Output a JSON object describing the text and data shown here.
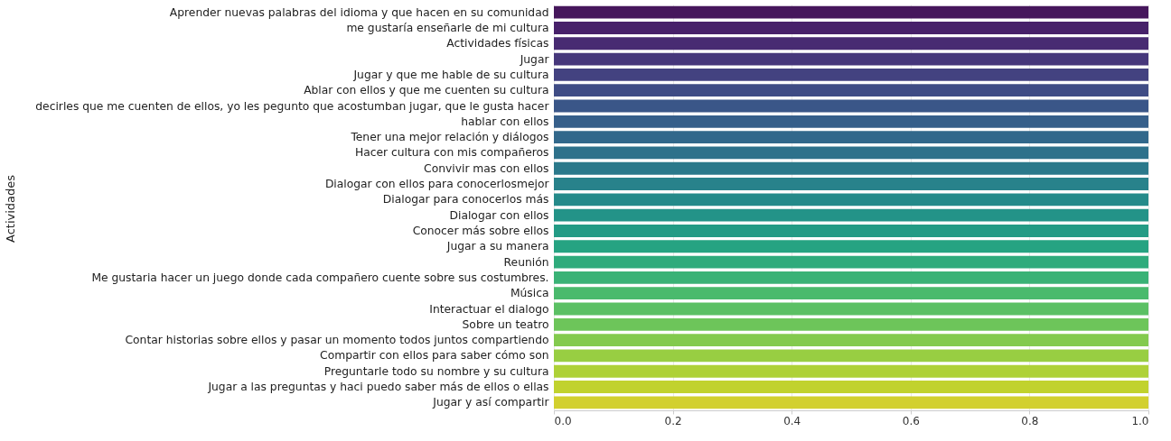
{
  "chart_data": {
    "type": "bar",
    "orientation": "horizontal",
    "ylabel": "Actividades",
    "categories": [
      "Aprender nuevas palabras del idioma y que hacen en su comunidad",
      "me gustaría enseñarle de mi cultura",
      "Actividades físicas",
      "Jugar",
      "Jugar y que me hable de su cultura",
      "Ablar con ellos y que me cuenten su cultura",
      "decirles que me  cuenten de ellos, yo les pegunto que acostumban jugar, que le gusta hacer",
      "hablar con ellos",
      "Tener una mejor relación y diálogos",
      "Hacer cultura con mis compañeros",
      "Convivir mas con ellos",
      "Dialogar con ellos para conocerlosmejor",
      "Dialogar para conocerlos más",
      "Dialogar con ellos",
      "Conocer más sobre ellos",
      "Jugar a su manera",
      "Reunión",
      "Me gustaria hacer un juego donde cada compañero cuente sobre sus costumbres.",
      "Música",
      "Interactuar el dialogo",
      "Sobre un teatro",
      "Contar historias sobre ellos y pasar un momento todos juntos compartiendo",
      "Compartir con ellos para saber cómo son",
      "Preguntarle todo su nombre y su cultura",
      "Jugar a las preguntas y haci puedo saber más de ellos o ellas",
      "Jugar y así compartir"
    ],
    "values": [
      1,
      1,
      1,
      1,
      1,
      1,
      1,
      1,
      1,
      1,
      1,
      1,
      1,
      1,
      1,
      1,
      1,
      1,
      1,
      1,
      1,
      1,
      1,
      1,
      1,
      1
    ],
    "colors": [
      "#46175c",
      "#47216a",
      "#482b72",
      "#46377b",
      "#434280",
      "#3f4c85",
      "#3a5688",
      "#365f8a",
      "#32688b",
      "#2e718b",
      "#2b798b",
      "#28828b",
      "#258a8a",
      "#239388",
      "#239b85",
      "#26a382",
      "#2fab7c",
      "#3ab276",
      "#4aba6d",
      "#5bc064",
      "#6dc55a",
      "#83ca4e",
      "#98ce42",
      "#aed137",
      "#c1d22e",
      "#d2d02f"
    ],
    "xlim": [
      0,
      1
    ],
    "xticks": [
      {
        "value": 0,
        "label": "0.0"
      },
      0.2,
      0.4,
      0.6,
      0.8,
      {
        "value": 1,
        "label": "1.0"
      }
    ],
    "grid": "x"
  }
}
